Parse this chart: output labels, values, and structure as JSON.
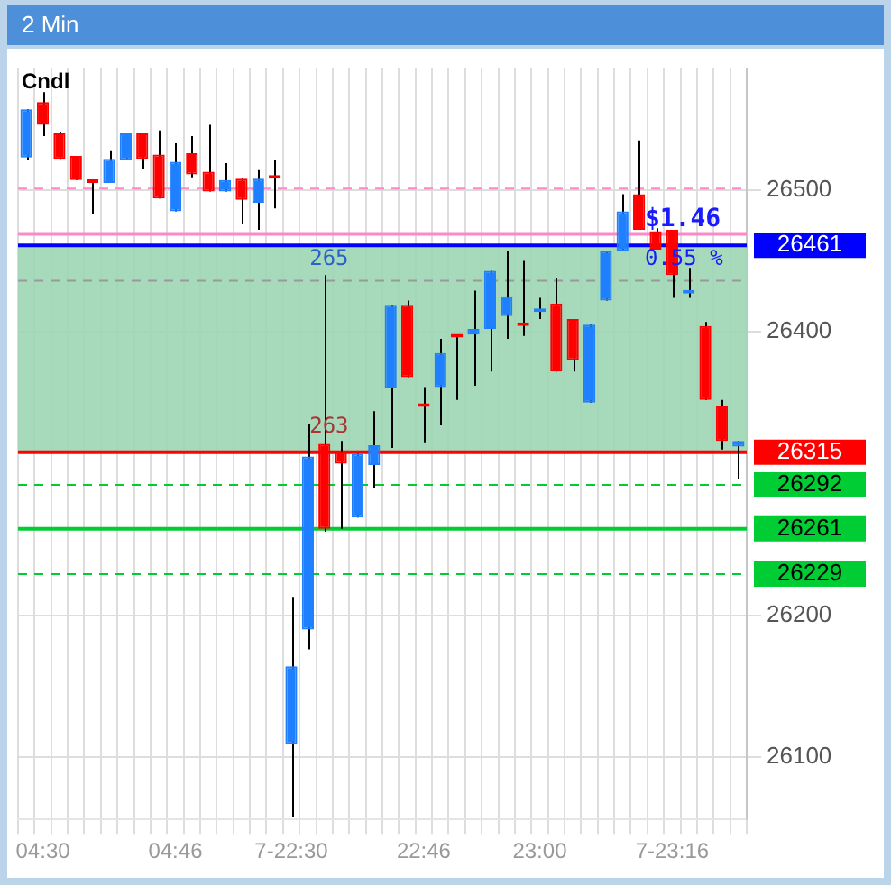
{
  "chart_data": {
    "type": "candlestick",
    "title": "2 Min",
    "subtitle": "Cndl",
    "categories": [
      null,
      "04:30",
      null,
      null,
      null,
      null,
      null,
      null,
      null,
      "04:46",
      null,
      null,
      null,
      null,
      null,
      null,
      "7-22:30",
      null,
      null,
      null,
      null,
      null,
      null,
      null,
      "22:46",
      null,
      null,
      null,
      null,
      null,
      null,
      "23:00",
      null,
      null,
      null,
      null,
      null,
      null,
      null,
      "7-23:16",
      null,
      null,
      null,
      null
    ],
    "ohlc": [
      [
        26523,
        26557,
        26521,
        26557
      ],
      [
        26562,
        26569,
        26538,
        26546
      ],
      [
        26540,
        26541,
        26522,
        26522
      ],
      [
        26524,
        26524,
        26507,
        26507
      ],
      [
        26506,
        26506,
        26483,
        26505
      ],
      [
        26505,
        26528,
        26505,
        26522
      ],
      [
        26521,
        26540,
        26521,
        26540
      ],
      [
        26540,
        26540,
        26515,
        26522
      ],
      [
        26525,
        26542,
        26494,
        26494
      ],
      [
        26485,
        26533,
        26485,
        26520
      ],
      [
        26526,
        26538,
        26509,
        26511
      ],
      [
        26513,
        26546,
        26499,
        26499
      ],
      [
        26499,
        26519,
        26499,
        26507
      ],
      [
        26508,
        26508,
        26476,
        26493
      ],
      [
        26491,
        26514,
        26472,
        26508
      ],
      [
        26509,
        26521,
        26487,
        26508
      ],
      [
        26109,
        26213,
        26058,
        26164
      ],
      [
        26190,
        26335,
        26176,
        26312
      ],
      [
        26321,
        26440,
        26259,
        26261
      ],
      [
        26316,
        26323,
        26261,
        26307
      ],
      [
        26269,
        26314,
        26269,
        26314
      ],
      [
        26306,
        26344,
        26290,
        26320
      ],
      [
        26360,
        26419,
        26318,
        26419
      ],
      [
        26419,
        26422,
        26368,
        26368
      ],
      [
        26348,
        26361,
        26322,
        26347
      ],
      [
        26361,
        26395,
        26334,
        26385
      ],
      [
        26396,
        26397,
        26352,
        26397
      ],
      [
        26398,
        26429,
        26362,
        26402
      ],
      [
        26402,
        26443,
        26372,
        26443
      ],
      [
        26411,
        26457,
        26395,
        26425
      ],
      [
        26405,
        26450,
        26397,
        26404
      ],
      [
        26414,
        26424,
        26409,
        26416
      ],
      [
        26420,
        26438,
        26372,
        26372
      ],
      [
        26409,
        26409,
        26372,
        26380
      ],
      [
        26350,
        26405,
        26350,
        26405
      ],
      [
        26422,
        26457,
        26422,
        26457
      ],
      [
        26457,
        26497,
        26457,
        26485
      ],
      [
        26497,
        26535,
        26472,
        26472
      ],
      [
        26471,
        26473,
        26458,
        26458
      ],
      [
        26472,
        26472,
        26424,
        26440
      ],
      [
        26427,
        26445,
        26424,
        26428
      ],
      [
        26404,
        26407,
        26352,
        26352
      ],
      [
        26348,
        26352,
        26317,
        26323
      ],
      [
        26319,
        26323,
        26296,
        26323
      ]
    ],
    "colors": [
      "#1e7fff",
      "#ff0000",
      "#ff0000",
      "#ff0000",
      "#ff0000",
      "#1e7fff",
      "#1e7fff",
      "#ff0000",
      "#ff0000",
      "#1e7fff",
      "#ff0000",
      "#ff0000",
      "#1e7fff",
      "#ff0000",
      "#1e7fff",
      "#ff0000",
      "#1e7fff",
      "#1e7fff",
      "#ff0000",
      "#ff0000",
      "#1e7fff",
      "#1e7fff",
      "#1e7fff",
      "#ff0000",
      "#ff0000",
      "#1e7fff",
      "#ff0000",
      "#1e7fff",
      "#1e7fff",
      "#1e7fff",
      "#ff0000",
      "#1e7fff",
      "#ff0000",
      "#ff0000",
      "#1e7fff",
      "#1e7fff",
      "#1e7fff",
      "#ff0000",
      "#ff0000",
      "#ff0000",
      "#1e7fff",
      "#ff0000",
      "#ff0000",
      "#1e7fff"
    ],
    "ylim": [
      26056,
      26586
    ],
    "yticks": [
      26100,
      26200,
      26400,
      26500
    ],
    "grid": true,
    "legend": false,
    "ref_lines": [
      {
        "axis": "y",
        "value": 26461,
        "label": "26461",
        "color": "#0000ff",
        "line_style": "solid"
      },
      {
        "axis": "y",
        "value": 26315,
        "label": "26315",
        "color": "#ff0000",
        "line_style": "solid"
      },
      {
        "axis": "y",
        "value": 26292,
        "label": "26292",
        "color": "#00cc33",
        "line_style": "dashed"
      },
      {
        "axis": "y",
        "value": 26261,
        "label": "26261",
        "color": "#00cc33",
        "line_style": "solid"
      },
      {
        "axis": "y",
        "value": 26229,
        "label": "26229",
        "color": "#00cc33",
        "line_style": "dashed"
      },
      {
        "axis": "y",
        "value": 26501,
        "color": "#ff88c8",
        "line_style": "dashed"
      },
      {
        "axis": "y",
        "value": 26469,
        "color": "#ff88c8",
        "line_style": "solid"
      },
      {
        "axis": "y",
        "value": 26436,
        "color": "#999999",
        "line_style": "dashed"
      }
    ],
    "bands": [
      {
        "axis": "y",
        "from": 26315,
        "to": 26461,
        "color": "#9dd6b4"
      }
    ],
    "annotations": [
      {
        "text": "265",
        "y": 26461
      },
      {
        "text": "263",
        "y": 26315
      },
      {
        "text": "$1.46",
        "y": 26461
      },
      {
        "text": "0.55 %",
        "y": 26461
      }
    ]
  }
}
